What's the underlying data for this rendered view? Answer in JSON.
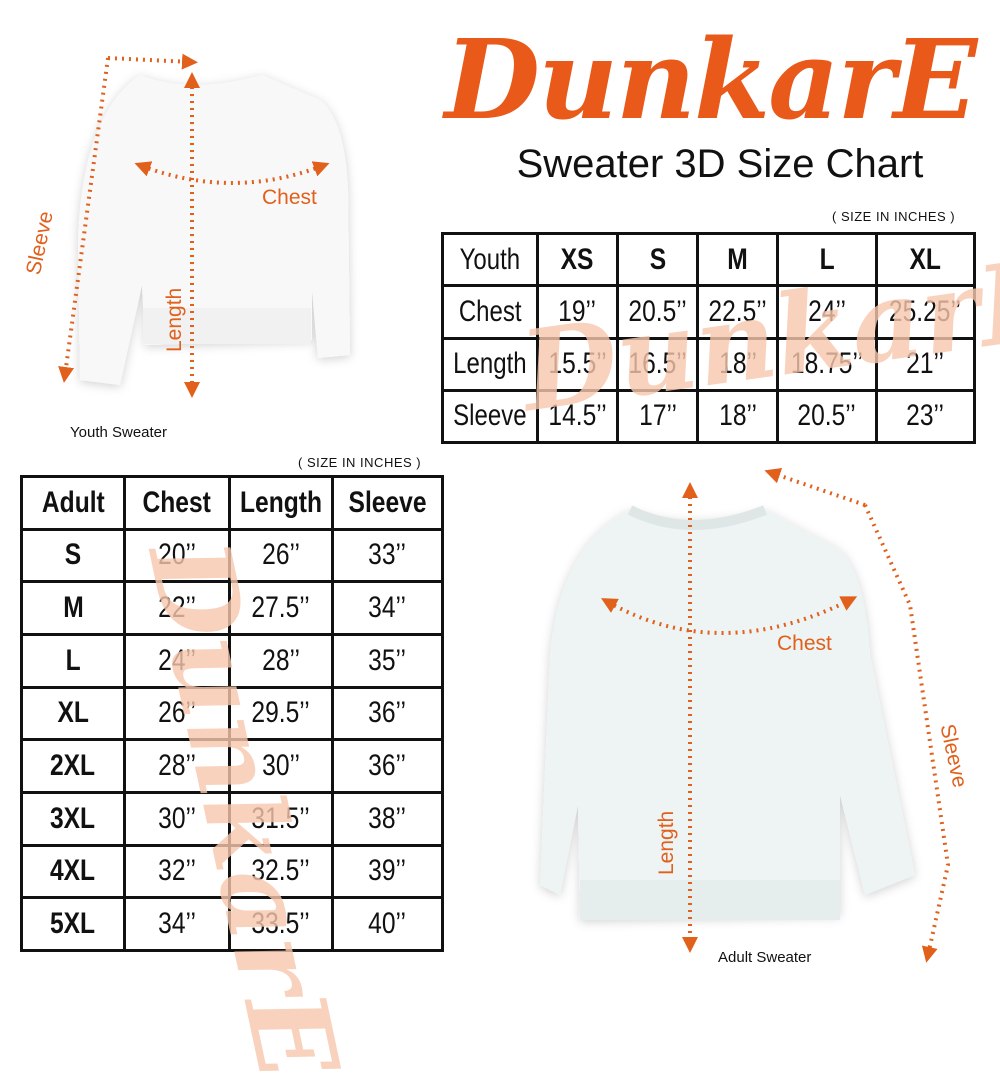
{
  "brand": {
    "logo_text": "DunkarE",
    "color": "#e8591a"
  },
  "title": "Sweater 3D Size Chart",
  "youth": {
    "unit_note": "( SIZE IN INCHES )",
    "header": [
      "Youth",
      "XS",
      "S",
      "M",
      "L",
      "XL"
    ],
    "rows": [
      [
        "Chest",
        "19’’",
        "20.5’’",
        "22.5’’",
        "24’’",
        "25.25’’"
      ],
      [
        "Length",
        "15.5’’",
        "16.5’’",
        "18’’",
        "18.75’’",
        "21’’"
      ],
      [
        "Sleeve",
        "14.5’’",
        "17’’",
        "18’’",
        "20.5’’",
        "23’’"
      ]
    ],
    "caption": "Youth Sweater",
    "labels": {
      "sleeve": "Sleeve",
      "chest": "Chest",
      "length": "Length"
    }
  },
  "adult": {
    "unit_note": "( SIZE IN INCHES )",
    "header": [
      "Adult",
      "Chest",
      "Length",
      "Sleeve"
    ],
    "rows": [
      [
        "S",
        "20’’",
        "26’’",
        "33’’"
      ],
      [
        "M",
        "22’’",
        "27.5’’",
        "34’’"
      ],
      [
        "L",
        "24’’",
        "28’’",
        "35’’"
      ],
      [
        "XL",
        "26’’",
        "29.5’’",
        "36’’"
      ],
      [
        "2XL",
        "28’’",
        "30’’",
        "36’’"
      ],
      [
        "3XL",
        "30’’",
        "31.5’’",
        "38’’"
      ],
      [
        "4XL",
        "32’’",
        "32.5’’",
        "39’’"
      ],
      [
        "5XL",
        "34’’",
        "33.5’’",
        "40’’"
      ]
    ],
    "caption": "Adult Sweater",
    "labels": {
      "sleeve": "Sleeve",
      "chest": "Chest",
      "length": "Length"
    }
  },
  "colors": {
    "accent": "#e0601c",
    "border": "#111111",
    "watermark": "#f7c8ad"
  }
}
